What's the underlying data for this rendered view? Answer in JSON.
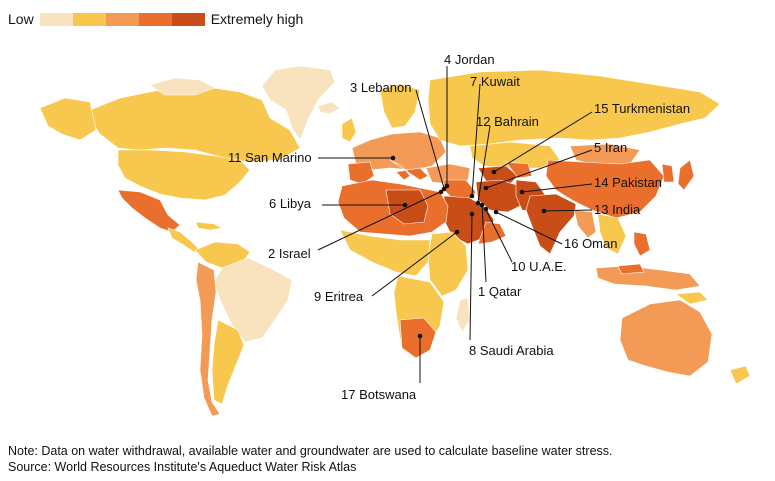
{
  "legend": {
    "low": "Low",
    "high": "Extremely high",
    "colors": [
      "#f9e3bf",
      "#f7c84d",
      "#f29a56",
      "#ea6e2c",
      "#c94d16"
    ]
  },
  "labels": [
    {
      "id": "4",
      "text": "4 Jordan"
    },
    {
      "id": "7",
      "text": "7 Kuwait"
    },
    {
      "id": "3",
      "text": "3 Lebanon"
    },
    {
      "id": "12",
      "text": "12 Bahrain"
    },
    {
      "id": "15",
      "text": "15 Turkmenistan"
    },
    {
      "id": "11",
      "text": "11 San Marino"
    },
    {
      "id": "5",
      "text": "5 Iran"
    },
    {
      "id": "14",
      "text": "14 Pakistan"
    },
    {
      "id": "6",
      "text": "6 Libya"
    },
    {
      "id": "13",
      "text": "13 India"
    },
    {
      "id": "16",
      "text": "16 Oman"
    },
    {
      "id": "2",
      "text": "2 Israel"
    },
    {
      "id": "10",
      "text": "10 U.A.E."
    },
    {
      "id": "1",
      "text": "1 Qatar"
    },
    {
      "id": "9",
      "text": "9 Eritrea"
    },
    {
      "id": "8",
      "text": "8 Saudi Arabia"
    },
    {
      "id": "17",
      "text": "17 Botswana"
    }
  ],
  "notes": {
    "note": "Note: Data on water withdrawal, available water and groundwater are used to calculate baseline water stress.",
    "source": "Source: World Resources Institute's Aqueduct Water Risk Atlas"
  }
}
